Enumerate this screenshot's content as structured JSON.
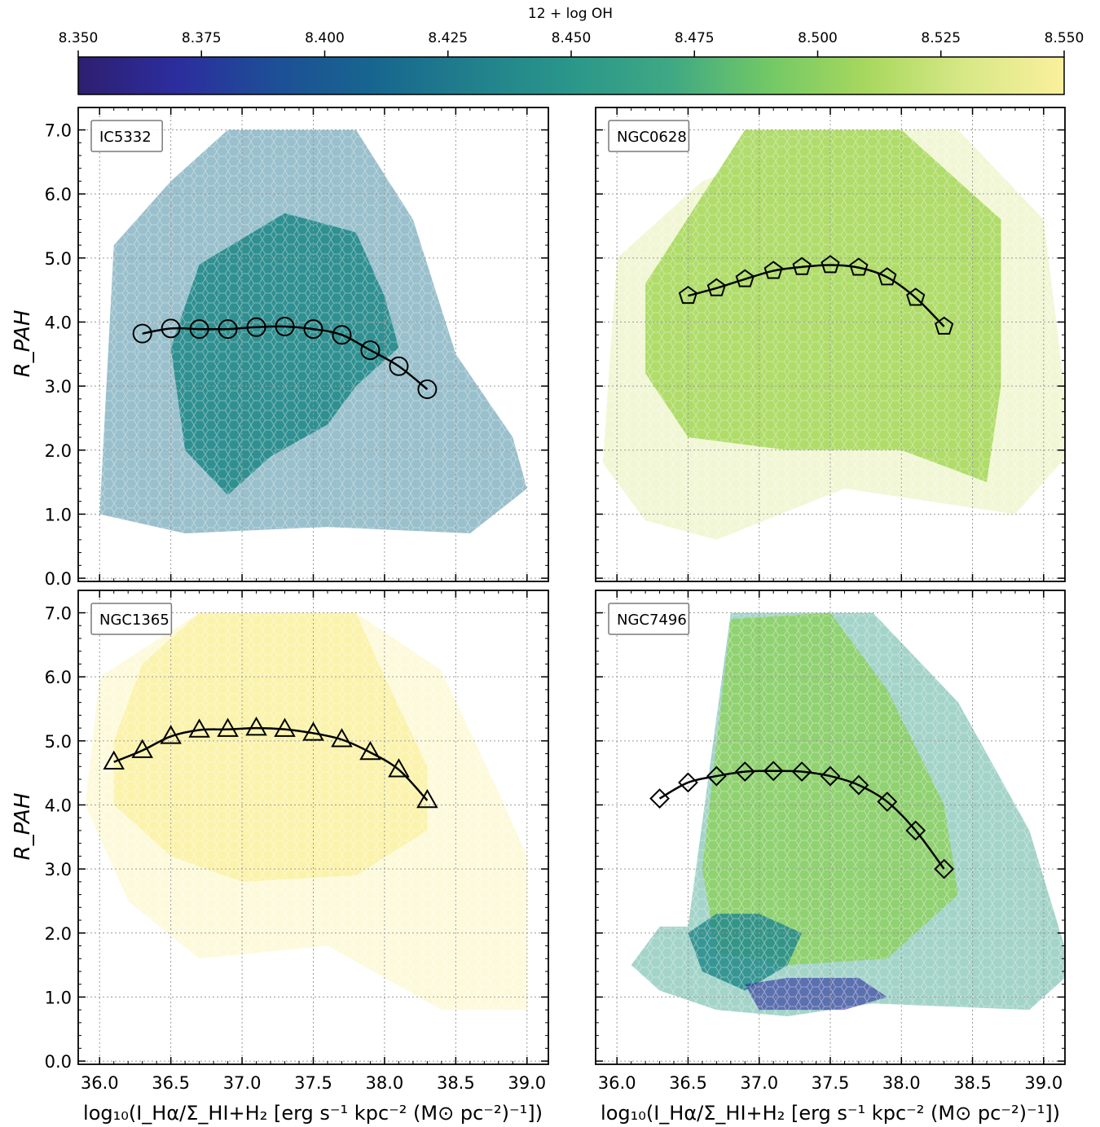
{
  "colorbar": {
    "label": "12 + log OH",
    "range": [
      8.35,
      8.55
    ],
    "tick_labels": [
      "8.350",
      "8.375",
      "8.400",
      "8.425",
      "8.450",
      "8.475",
      "8.500",
      "8.525",
      "8.550"
    ],
    "colormap": "viridis-like",
    "colormap_stops": [
      "#2e1f6f",
      "#2c2d9e",
      "#1d4f96",
      "#17668f",
      "#21808c",
      "#2a978a",
      "#3fa884",
      "#72c866",
      "#a8d85e",
      "#d8e887",
      "#faf09c"
    ]
  },
  "xlabel": "log₁₀(I_Hα/Σ_HI+H₂ [erg s⁻¹ kpc⁻² (M⊙ pc⁻²)⁻¹])",
  "ylabel": "R_PAH",
  "chart_data": [
    {
      "type": "scatter",
      "panel": "top-left",
      "title": "IC5332",
      "marker": "circle",
      "line_color": "#000000",
      "x": [
        36.3,
        36.5,
        36.7,
        36.9,
        37.1,
        37.3,
        37.5,
        37.7,
        37.9,
        38.1,
        38.3
      ],
      "y": [
        3.82,
        3.9,
        3.89,
        3.89,
        3.92,
        3.93,
        3.89,
        3.8,
        3.56,
        3.31,
        2.95
      ],
      "xlim": [
        35.85,
        39.15
      ],
      "ylim": [
        -0.05,
        7.35
      ],
      "xticks": [
        "36.0",
        "36.5",
        "37.0",
        "37.5",
        "38.0",
        "38.5",
        "39.0"
      ],
      "yticks": [
        "0.0",
        "1.0",
        "2.0",
        "3.0",
        "4.0",
        "5.0",
        "6.0",
        "7.0"
      ],
      "grid": true,
      "background_hexbin": {
        "dominant_metallicity": 8.44,
        "region": "x 36.0-39.0, y 0.7-7.0"
      }
    },
    {
      "type": "scatter",
      "panel": "top-right",
      "title": "NGC0628",
      "marker": "pentagon",
      "line_color": "#000000",
      "x": [
        36.5,
        36.7,
        36.9,
        37.1,
        37.3,
        37.5,
        37.7,
        37.9,
        38.1,
        38.3
      ],
      "y": [
        4.41,
        4.53,
        4.67,
        4.8,
        4.86,
        4.89,
        4.85,
        4.7,
        4.38,
        3.93
      ],
      "xlim": [
        35.85,
        39.15
      ],
      "ylim": [
        -0.05,
        7.35
      ],
      "xticks": [
        "36.0",
        "36.5",
        "37.0",
        "37.5",
        "38.0",
        "38.5",
        "39.0"
      ],
      "yticks": [],
      "grid": true,
      "background_hexbin": {
        "dominant_metallicity": 8.51,
        "region": "x 35.9-39.2, y 0.2-7.0"
      }
    },
    {
      "type": "scatter",
      "panel": "bottom-left",
      "title": "NGC1365",
      "marker": "triangle",
      "line_color": "#000000",
      "x": [
        36.1,
        36.3,
        36.5,
        36.7,
        36.9,
        37.1,
        37.3,
        37.5,
        37.7,
        37.9,
        38.1,
        38.3
      ],
      "y": [
        4.67,
        4.85,
        5.07,
        5.17,
        5.18,
        5.2,
        5.18,
        5.12,
        5.02,
        4.82,
        4.55,
        4.07
      ],
      "xlim": [
        35.85,
        39.15
      ],
      "ylim": [
        -0.05,
        7.35
      ],
      "xticks": [
        "36.0",
        "36.5",
        "37.0",
        "37.5",
        "38.0",
        "38.5",
        "39.0"
      ],
      "yticks": [
        "0.0",
        "1.0",
        "2.0",
        "3.0",
        "4.0",
        "5.0",
        "6.0",
        "7.0"
      ],
      "grid": true,
      "background_hexbin": {
        "dominant_metallicity": 8.55,
        "region": "x 35.9-39.1, y 0.5-7.0"
      }
    },
    {
      "type": "scatter",
      "panel": "bottom-right",
      "title": "NGC7496",
      "marker": "diamond",
      "line_color": "#000000",
      "x": [
        36.3,
        36.5,
        36.7,
        36.9,
        37.1,
        37.3,
        37.5,
        37.7,
        37.9,
        38.1,
        38.3
      ],
      "y": [
        4.1,
        4.35,
        4.45,
        4.52,
        4.53,
        4.52,
        4.45,
        4.31,
        4.05,
        3.6,
        3.0
      ],
      "xlim": [
        35.85,
        39.15
      ],
      "ylim": [
        -0.05,
        7.35
      ],
      "xticks": [
        "36.0",
        "36.5",
        "37.0",
        "37.5",
        "38.0",
        "38.5",
        "39.0"
      ],
      "yticks": [],
      "grid": true,
      "background_hexbin": {
        "dominant_metallicity": 8.5,
        "region": "x 36.0-39.2, y 0.4-7.0"
      }
    }
  ]
}
